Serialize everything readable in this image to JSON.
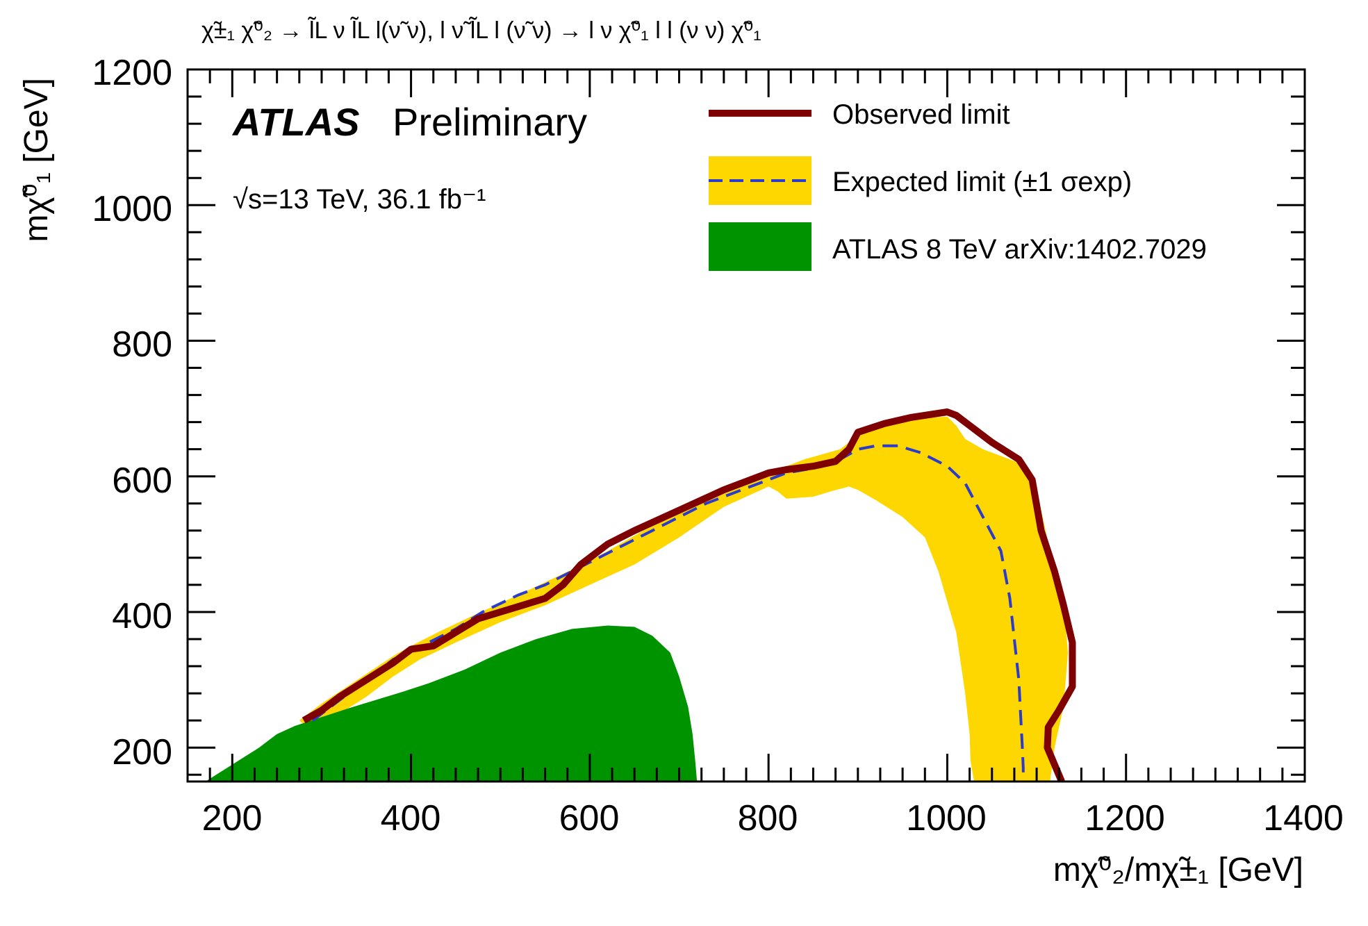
{
  "chart_data": {
    "type": "area",
    "title": "χ̃±₁ χ̃⁰₂ → l̃L ν l̃L l(ν̃ ν), l ν̃ l̃L l (ν̃ ν) → l ν χ̃⁰₁ l l (ν ν) χ̃⁰₁",
    "xlabel": "mχ̃⁰₂/mχ̃±₁ [GeV]",
    "ylabel": "mχ̃⁰₁ [GeV]",
    "xlim": [
      150,
      1400
    ],
    "ylim": [
      150,
      1200
    ],
    "x_ticks": [
      "200",
      "400",
      "600",
      "800",
      "1000",
      "1200",
      "1400"
    ],
    "y_ticks": [
      "200",
      "400",
      "600",
      "800",
      "1000",
      "1200"
    ],
    "atlas_label": "ATLAS",
    "atlas_suffix": "Preliminary",
    "energy_label": "√s=13 TeV, 36.1 fb⁻¹",
    "legend": {
      "observed": "Observed limit",
      "expected": "Expected limit (±1 σexp)",
      "run1": "ATLAS 8 TeV arXiv:1402.7029"
    },
    "colors": {
      "observed": "#7f0000",
      "expected": "#2b3bcc",
      "band": "#ffd700",
      "run1": "#009300"
    },
    "series": [
      {
        "name": "Observed limit",
        "style": "line",
        "x": [
          280,
          300,
          320,
          350,
          380,
          400,
          425,
          450,
          475,
          500,
          550,
          570,
          590,
          620,
          650,
          700,
          750,
          800,
          820,
          850,
          875,
          890,
          900,
          930,
          960,
          1000,
          1010,
          1030,
          1050,
          1080,
          1095,
          1105,
          1120,
          1130,
          1140,
          1140,
          1125,
          1113,
          1112,
          1128
        ],
        "y": [
          240,
          255,
          275,
          300,
          325,
          345,
          350,
          370,
          390,
          400,
          420,
          440,
          470,
          500,
          520,
          550,
          580,
          605,
          610,
          615,
          622,
          640,
          665,
          678,
          687,
          695,
          690,
          670,
          650,
          625,
          595,
          520,
          460,
          410,
          355,
          290,
          255,
          230,
          200,
          150
        ]
      },
      {
        "name": "Expected limit",
        "style": "dashed",
        "x": [
          290,
          320,
          350,
          380,
          420,
          450,
          480,
          520,
          550,
          580,
          610,
          640,
          670,
          700,
          730,
          760,
          790,
          820,
          850,
          880,
          900,
          920,
          945,
          970,
          1000,
          1020,
          1040,
          1060,
          1070,
          1075,
          1080,
          1082,
          1084,
          1085,
          1085,
          1086
        ],
        "y": [
          240,
          270,
          300,
          330,
          355,
          375,
          400,
          425,
          440,
          460,
          480,
          500,
          520,
          540,
          560,
          575,
          590,
          605,
          612,
          625,
          640,
          645,
          645,
          635,
          615,
          590,
          540,
          490,
          420,
          360,
          300,
          250,
          200,
          170,
          160,
          150
        ]
      },
      {
        "name": "Expected limit ±1σ upper",
        "style": "band-edge",
        "x": [
          275,
          300,
          340,
          380,
          400,
          430,
          470,
          520,
          560,
          600,
          660,
          700,
          760,
          800,
          840,
          880,
          900,
          930,
          960,
          1000,
          1010,
          1020,
          1040,
          1060,
          1080,
          1100,
          1115,
          1130,
          1135,
          1130,
          1120,
          1115
        ],
        "y": [
          240,
          265,
          300,
          335,
          350,
          370,
          395,
          425,
          450,
          475,
          520,
          545,
          580,
          605,
          625,
          640,
          660,
          680,
          685,
          688,
          675,
          655,
          640,
          630,
          620,
          580,
          490,
          420,
          340,
          260,
          200,
          150
        ]
      },
      {
        "name": "Expected limit ±1σ lower",
        "style": "band-edge",
        "x": [
          290,
          320,
          350,
          380,
          410,
          450,
          500,
          550,
          600,
          650,
          700,
          750,
          800,
          810,
          820,
          850,
          870,
          890,
          900,
          920,
          950,
          975,
          990,
          1010,
          1020,
          1025,
          1026,
          1030
        ],
        "y": [
          225,
          250,
          275,
          305,
          330,
          355,
          385,
          410,
          440,
          470,
          510,
          555,
          585,
          578,
          567,
          570,
          578,
          585,
          580,
          565,
          540,
          510,
          460,
          370,
          280,
          220,
          180,
          150
        ]
      },
      {
        "name": "ATLAS 8 TeV arXiv:1402.7029",
        "style": "filled",
        "x": [
          170,
          200,
          230,
          250,
          270,
          300,
          330,
          360,
          390,
          420,
          460,
          500,
          540,
          580,
          620,
          650,
          670,
          690,
          700,
          710,
          715,
          718,
          720
        ],
        "y": [
          150,
          175,
          200,
          220,
          232,
          245,
          258,
          270,
          282,
          295,
          315,
          340,
          360,
          375,
          380,
          378,
          365,
          340,
          305,
          260,
          220,
          180,
          150
        ]
      }
    ]
  }
}
